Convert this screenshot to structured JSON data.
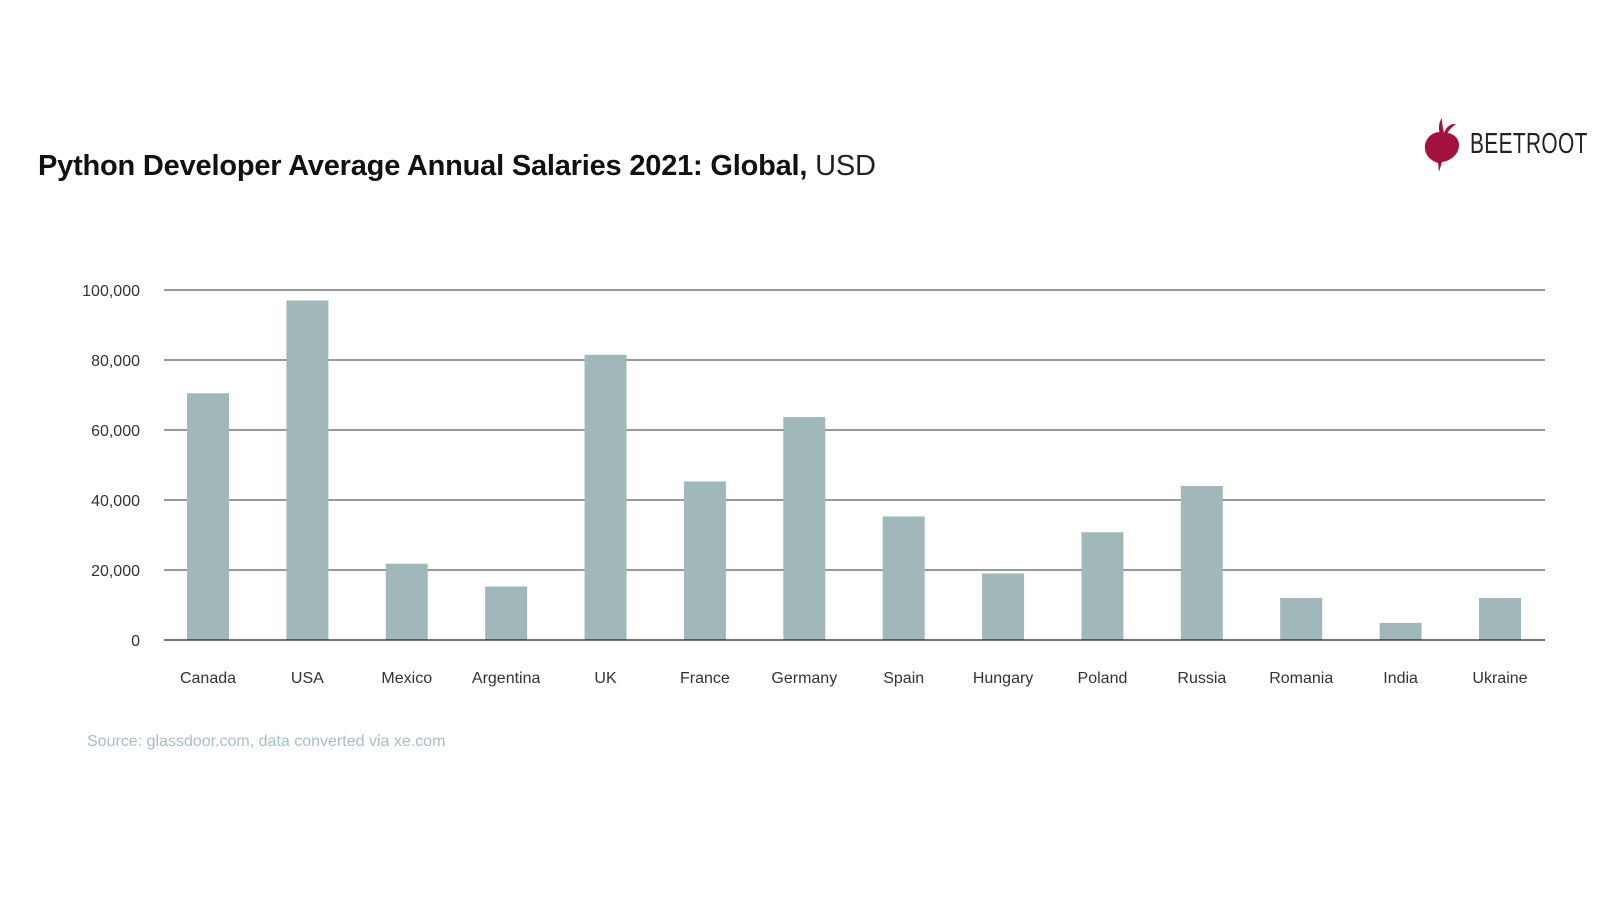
{
  "title": {
    "main": "Python Developer Average Annual Salaries 2021: Global,",
    "unit": "USD"
  },
  "logo": {
    "text": "BEETROOT",
    "color": "#a3123f"
  },
  "source": "Source: glassdoor.com, data converted via xe.com",
  "chart_data": {
    "type": "bar",
    "title": "Python Developer Average Annual Salaries 2021: Global, USD",
    "categories": [
      "Canada",
      "USA",
      "Mexico",
      "Argentina",
      "UK",
      "France",
      "Germany",
      "Spain",
      "Hungary",
      "Poland",
      "Russia",
      "Romania",
      "India",
      "Ukraine"
    ],
    "values": [
      70500,
      97000,
      21800,
      15300,
      81500,
      45300,
      63700,
      35300,
      19000,
      30800,
      44000,
      12000,
      4900,
      12000
    ],
    "ylim": [
      0,
      100000
    ],
    "yticks": [
      {
        "value": 0,
        "label": "0"
      },
      {
        "value": 20000,
        "label": "20,000"
      },
      {
        "value": 40000,
        "label": "40,000"
      },
      {
        "value": 60000,
        "label": "60,000"
      },
      {
        "value": 80000,
        "label": "80,000"
      },
      {
        "value": 100000,
        "label": "100,000"
      }
    ],
    "xlabel": "",
    "ylabel": "",
    "grid": true,
    "bar_color": "#a1b8bb"
  }
}
